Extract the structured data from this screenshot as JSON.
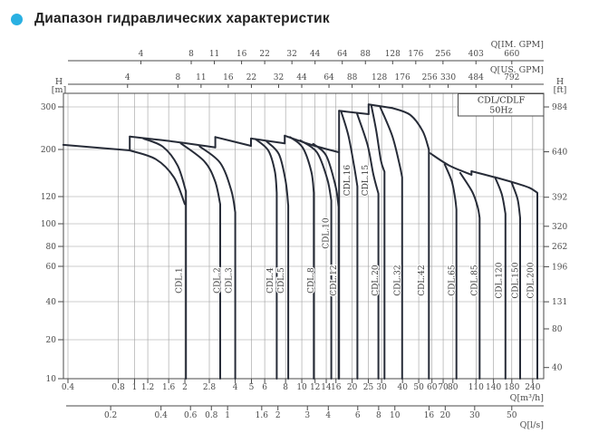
{
  "title": "Диапазон гидравлических характеристик",
  "accent_color": "#29b0e2",
  "chart_data": {
    "type": "line",
    "title": "Диапазон гидравлических характеристик",
    "series_box": {
      "line1": "CDL/CDLF",
      "line2": "50Hz"
    },
    "axes": {
      "im_gpm": {
        "label": "Q[IM. GPM]",
        "unit_factor_to_m3h": 0.27277,
        "ticks": [
          4,
          8,
          11,
          16,
          22,
          32,
          44,
          64,
          88,
          128,
          176,
          256,
          403,
          660
        ]
      },
      "us_gpm": {
        "label": "Q[US. GPM]",
        "unit_factor_to_m3h": 0.22712,
        "ticks": [
          4,
          8,
          11,
          16,
          22,
          32,
          44,
          64,
          88,
          128,
          176,
          256,
          330,
          484,
          792
        ]
      },
      "m3h": {
        "label": "Q[m³/h]",
        "ticks": [
          0.4,
          0.8,
          1,
          1.2,
          1.6,
          2,
          2.8,
          4,
          5,
          6,
          8,
          10,
          12,
          14,
          16,
          20,
          25,
          30,
          40,
          50,
          60,
          70,
          80,
          110,
          140,
          180,
          240
        ]
      },
      "ls": {
        "label": "Q[l/s]",
        "unit_factor_to_m3h": 3.6,
        "ticks": [
          0.2,
          0.4,
          0.6,
          0.8,
          1,
          1.6,
          2,
          3,
          4,
          6,
          8,
          10,
          16,
          20,
          30,
          50
        ]
      },
      "h_m": {
        "label_top": "H",
        "label_unit": "[m]",
        "ticks": [
          300,
          200,
          120,
          100,
          80,
          60,
          40,
          20,
          10
        ]
      },
      "h_ft": {
        "label_top": "H",
        "label_unit": "[ft]",
        "ft_to_m": 0.3048,
        "ticks": [
          984,
          640,
          392,
          320,
          262,
          196,
          131,
          80,
          40
        ]
      }
    },
    "pumps": [
      {
        "label": "CDL.1",
        "max_flow_m3h": 2.0,
        "approx_max_head_m": 226,
        "label_pos": [
          1.84,
          51
        ]
      },
      {
        "label": "CDL.2",
        "max_flow_m3h": 3.25,
        "approx_max_head_m": 224,
        "label_pos": [
          3.12,
          51
        ]
      },
      {
        "label": "CDL.3",
        "max_flow_m3h": 4.0,
        "approx_max_head_m": 225,
        "label_pos": [
          3.67,
          51
        ]
      },
      {
        "label": "CDL.4",
        "max_flow_m3h": 7.1,
        "approx_max_head_m": 222,
        "label_pos": [
          6.46,
          51
        ]
      },
      {
        "label": "CDL.5",
        "max_flow_m3h": 8.3,
        "approx_max_head_m": 221,
        "label_pos": [
          7.5,
          51
        ]
      },
      {
        "label": "CDL.8",
        "max_flow_m3h": 11.8,
        "approx_max_head_m": 228,
        "label_pos": [
          11.3,
          51
        ]
      },
      {
        "label": "CDL.10",
        "max_flow_m3h": 15.0,
        "approx_max_head_m": 218,
        "label_pos": [
          13.9,
          91
        ]
      },
      {
        "label": "CDL.12",
        "max_flow_m3h": 16.7,
        "approx_max_head_m": 211,
        "label_pos": [
          15.5,
          51
        ]
      },
      {
        "label": "CDL.16",
        "max_flow_m3h": 21.5,
        "approx_max_head_m": 289,
        "label_pos": [
          18.6,
          143
        ]
      },
      {
        "label": "CDL.15",
        "max_flow_m3h": 28.7,
        "approx_max_head_m": 281,
        "label_pos": [
          23.9,
          143
        ]
      },
      {
        "label": "CDL.20",
        "max_flow_m3h": 31.2,
        "approx_max_head_m": 308,
        "label_pos": [
          27.4,
          51
        ]
      },
      {
        "label": "CDL.32",
        "max_flow_m3h": 39.8,
        "approx_max_head_m": 300,
        "label_pos": [
          37.3,
          51
        ]
      },
      {
        "label": "CDL.42",
        "max_flow_m3h": 57.5,
        "approx_max_head_m": 297,
        "label_pos": [
          52,
          51
        ]
      },
      {
        "label": "CDL.65",
        "max_flow_m3h": 84,
        "approx_max_head_m": 192,
        "label_pos": [
          78.7,
          51
        ]
      },
      {
        "label": "CDL.85",
        "max_flow_m3h": 115.6,
        "approx_max_head_m": 160,
        "label_pos": [
          107.3,
          51
        ]
      },
      {
        "label": "CDL.120",
        "max_flow_m3h": 166,
        "approx_max_head_m": 149,
        "label_pos": [
          150.6,
          51
        ]
      },
      {
        "label": "CDL.150",
        "max_flow_m3h": 202,
        "approx_max_head_m": 140,
        "label_pos": [
          188,
          51
        ]
      },
      {
        "label": "CDL.200",
        "max_flow_m3h": 256,
        "approx_max_head_m": 158,
        "label_pos": [
          233,
          51
        ]
      }
    ],
    "curves": [
      {
        "n": "ceiling-a",
        "t": "line",
        "p": [
          [
            0.375,
            209
          ],
          [
            0.936,
            198
          ]
        ]
      },
      {
        "n": "step-1",
        "t": "line",
        "p": [
          [
            0.936,
            198
          ],
          [
            0.936,
            226
          ]
        ]
      },
      {
        "n": "ceiling-b",
        "t": "smooth",
        "p": [
          [
            0.936,
            226
          ],
          [
            1.68,
            216
          ],
          [
            3.04,
            204
          ]
        ]
      },
      {
        "n": "step-2",
        "t": "line",
        "p": [
          [
            3.04,
            204
          ],
          [
            3.04,
            225
          ]
        ]
      },
      {
        "n": "ceiling-c",
        "t": "line",
        "p": [
          [
            3.04,
            225
          ],
          [
            4.97,
            207
          ]
        ]
      },
      {
        "n": "step-3",
        "t": "line",
        "p": [
          [
            4.97,
            207
          ],
          [
            4.97,
            222
          ]
        ]
      },
      {
        "n": "ceiling-d",
        "t": "line",
        "p": [
          [
            4.97,
            222
          ],
          [
            7.9,
            212
          ]
        ]
      },
      {
        "n": "step-4",
        "t": "line",
        "p": [
          [
            7.9,
            212
          ],
          [
            7.9,
            228
          ]
        ]
      },
      {
        "n": "ceiling-e",
        "t": "smooth",
        "p": [
          [
            7.9,
            228
          ],
          [
            11.7,
            208
          ],
          [
            16.7,
            194
          ]
        ]
      },
      {
        "n": "edge-cdl12-envelope",
        "t": "line",
        "p": [
          [
            16.7,
            289
          ],
          [
            16.7,
            10
          ]
        ]
      },
      {
        "n": "ceiling-f",
        "t": "line",
        "p": [
          [
            16.7,
            289
          ],
          [
            25.1,
            280
          ]
        ]
      },
      {
        "n": "step-5",
        "t": "line",
        "p": [
          [
            25.1,
            280
          ],
          [
            25.1,
            308
          ]
        ]
      },
      {
        "n": "ceiling-g",
        "t": "line",
        "p": [
          [
            25.1,
            308
          ],
          [
            34.7,
            297
          ]
        ]
      },
      {
        "n": "fall-cdl42",
        "t": "smooth",
        "drop": 1,
        "p": [
          [
            34.7,
            297
          ],
          [
            44.5,
            278
          ],
          [
            52.8,
            238
          ],
          [
            57.5,
            200
          ]
        ]
      },
      {
        "n": "ceiling-h",
        "t": "smooth",
        "p": [
          [
            58.6,
            192
          ],
          [
            76.1,
            168
          ],
          [
            103.3,
            152
          ]
        ]
      },
      {
        "n": "step-6",
        "t": "line",
        "p": [
          [
            103.3,
            152
          ],
          [
            103.3,
            158
          ]
        ]
      },
      {
        "n": "fall-cdl200",
        "t": "smooth",
        "drop": 1,
        "p": [
          [
            103.3,
            158
          ],
          [
            152,
            146
          ],
          [
            195,
            138
          ],
          [
            230,
            132
          ],
          [
            256,
            125
          ]
        ]
      },
      {
        "n": "fall-cdl1",
        "t": "smooth",
        "drop": 1,
        "p": [
          [
            1.13,
            222
          ],
          [
            1.48,
            205
          ],
          [
            1.81,
            168
          ],
          [
            2.03,
            127
          ]
        ]
      },
      {
        "n": "inner-cdl1",
        "t": "smooth",
        "p": [
          [
            0.936,
            198
          ],
          [
            1.34,
            180
          ],
          [
            1.72,
            148
          ],
          [
            2.0,
            114
          ]
        ]
      },
      {
        "n": "fall-cdl2",
        "t": "smooth",
        "drop": 1,
        "p": [
          [
            1.89,
            212
          ],
          [
            2.61,
            176
          ],
          [
            3.03,
            142
          ],
          [
            3.25,
            114
          ]
        ]
      },
      {
        "n": "fall-cdl3",
        "t": "smooth",
        "drop": 1,
        "p": [
          [
            2.45,
            206
          ],
          [
            3.25,
            173
          ],
          [
            3.79,
            128
          ],
          [
            4.0,
            108
          ]
        ]
      },
      {
        "n": "fall-cdl4",
        "t": "smooth",
        "drop": 1,
        "p": [
          [
            5.27,
            221
          ],
          [
            6.3,
            198
          ],
          [
            6.9,
            158
          ],
          [
            7.08,
            125
          ]
        ]
      },
      {
        "n": "fall-cdl5",
        "t": "smooth",
        "drop": 1,
        "p": [
          [
            6.16,
            216
          ],
          [
            7.3,
            190
          ],
          [
            8.0,
            142
          ],
          [
            8.3,
            113
          ]
        ]
      },
      {
        "n": "fall-cdl8",
        "t": "smooth",
        "drop": 1,
        "p": [
          [
            8.5,
            225
          ],
          [
            10.1,
            204
          ],
          [
            11.4,
            157
          ],
          [
            11.8,
            125
          ]
        ]
      },
      {
        "n": "fall-cdl10",
        "t": "smooth",
        "drop": 1,
        "p": [
          [
            9.8,
            218
          ],
          [
            12.3,
            194
          ],
          [
            14.2,
            145
          ],
          [
            15.0,
            117
          ]
        ]
      },
      {
        "n": "fall-cdl12",
        "t": "smooth",
        "drop": 1,
        "p": [
          [
            11.7,
            211
          ],
          [
            14.0,
            187
          ],
          [
            15.9,
            135
          ],
          [
            16.6,
            112
          ]
        ]
      },
      {
        "n": "fall-cdl16",
        "t": "smooth",
        "drop": 1,
        "p": [
          [
            17.2,
            287
          ],
          [
            19.0,
            228
          ],
          [
            20.6,
            165
          ],
          [
            21.5,
            134
          ]
        ]
      },
      {
        "n": "fall-cdl15",
        "t": "smooth",
        "drop": 1,
        "p": [
          [
            21.4,
            281
          ],
          [
            24.7,
            209
          ],
          [
            26.8,
            152
          ],
          [
            28.7,
            124
          ]
        ]
      },
      {
        "n": "fall-cdl20",
        "t": "smooth",
        "drop": 1,
        "p": [
          [
            26.0,
            306
          ],
          [
            27.9,
            238
          ],
          [
            29.7,
            178
          ],
          [
            31.2,
            157
          ]
        ]
      },
      {
        "n": "fall-cdl32",
        "t": "smooth",
        "drop": 1,
        "p": [
          [
            29.4,
            300
          ],
          [
            34.7,
            228
          ],
          [
            38.4,
            170
          ],
          [
            39.8,
            148
          ]
        ]
      },
      {
        "n": "fall-cdl65",
        "t": "smooth",
        "drop": 1,
        "p": [
          [
            71.5,
            170
          ],
          [
            78.7,
            142
          ],
          [
            82.5,
            119
          ],
          [
            84,
            110
          ]
        ]
      },
      {
        "n": "fall-cdl85",
        "t": "smooth",
        "drop": 1,
        "p": [
          [
            88.5,
            155
          ],
          [
            104.6,
            126
          ],
          [
            112.5,
            112
          ],
          [
            115.6,
            104
          ]
        ]
      },
      {
        "n": "fall-cdl120",
        "t": "smooth",
        "drop": 1,
        "p": [
          [
            143,
            148
          ],
          [
            157,
            123
          ],
          [
            165,
            107
          ]
        ]
      },
      {
        "n": "fall-cdl150",
        "t": "smooth",
        "drop": 1,
        "p": [
          [
            180,
            139
          ],
          [
            195,
            118
          ],
          [
            202,
            104
          ]
        ]
      }
    ],
    "layout_hints": {
      "x_scale": "log",
      "y_scale": "piecewise-log",
      "x_range_m3h": [
        0.375,
        283
      ],
      "y_range_m": [
        10,
        345
      ],
      "grid": true,
      "legend_position": "inside-top-right"
    }
  }
}
